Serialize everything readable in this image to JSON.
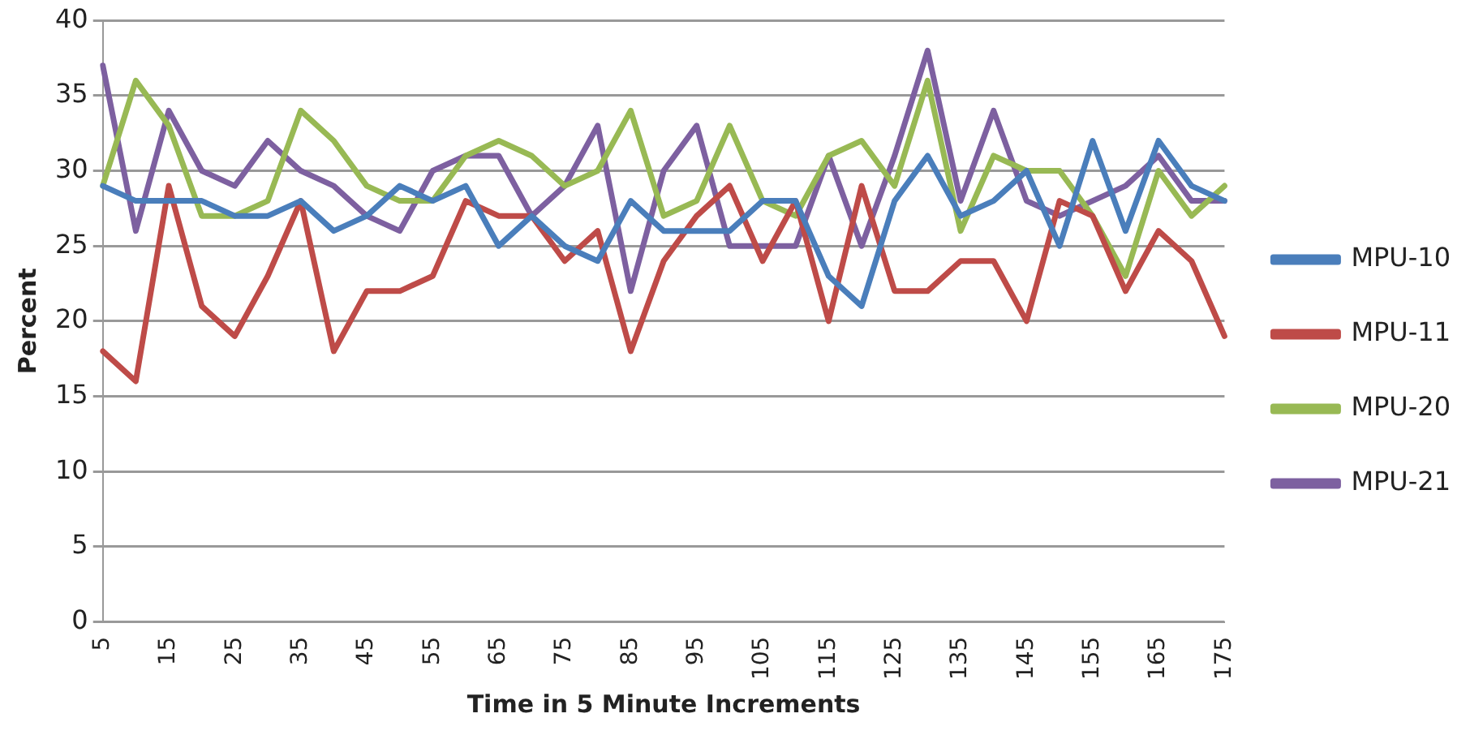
{
  "chart_data": {
    "type": "line",
    "xlabel": "Time in 5 Minute Increments",
    "ylabel": "Percent",
    "categories": [
      "5",
      null,
      "15",
      null,
      "25",
      null,
      "35",
      null,
      "45",
      null,
      "55",
      null,
      "65",
      null,
      "75",
      null,
      "85",
      null,
      "95",
      null,
      "105",
      null,
      "115",
      null,
      "125",
      null,
      "135",
      null,
      "145",
      null,
      "155",
      null,
      "165",
      null,
      "175"
    ],
    "series": [
      {
        "name": "MPU-10",
        "color": "#4a7ebb",
        "values": [
          29,
          28,
          28,
          28,
          27,
          27,
          28,
          26,
          27,
          29,
          28,
          29,
          25,
          27,
          25,
          24,
          28,
          26,
          26,
          26,
          28,
          28,
          23,
          21,
          28,
          31,
          27,
          28,
          30,
          25,
          32,
          26,
          32,
          29,
          28
        ]
      },
      {
        "name": "MPU-11",
        "color": "#be4b48",
        "values": [
          18,
          16,
          29,
          21,
          19,
          23,
          28,
          18,
          22,
          22,
          23,
          28,
          27,
          27,
          24,
          26,
          18,
          24,
          27,
          29,
          24,
          28,
          20,
          29,
          22,
          22,
          24,
          24,
          20,
          28,
          27,
          22,
          26,
          24,
          19
        ]
      },
      {
        "name": "MPU-20",
        "color": "#98b954",
        "values": [
          29,
          36,
          33,
          27,
          27,
          28,
          34,
          32,
          29,
          28,
          28,
          31,
          32,
          31,
          29,
          30,
          34,
          27,
          28,
          33,
          28,
          27,
          31,
          32,
          29,
          36,
          26,
          31,
          30,
          30,
          27,
          23,
          30,
          27,
          29
        ]
      },
      {
        "name": "MPU-21",
        "color": "#7d60a0",
        "values": [
          37,
          26,
          34,
          30,
          29,
          32,
          30,
          29,
          27,
          26,
          30,
          31,
          31,
          27,
          29,
          33,
          22,
          30,
          33,
          25,
          25,
          25,
          31,
          25,
          31,
          38,
          28,
          34,
          28,
          27,
          28,
          29,
          31,
          28,
          28
        ]
      }
    ],
    "ylim": [
      0,
      40
    ],
    "yticks": [
      0,
      5,
      10,
      15,
      20,
      25,
      30,
      35,
      40
    ],
    "grid": "y",
    "legend": "right",
    "marker": "none",
    "line_style": "solid"
  }
}
